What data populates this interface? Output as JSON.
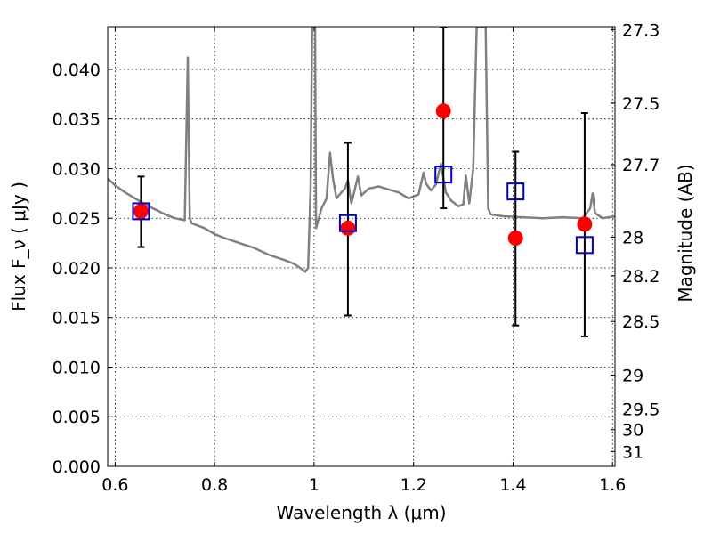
{
  "chart_data": {
    "type": "scatter",
    "xlabel": "Wavelength  λ (μm)",
    "ylabel": "Flux  F_ν  ( μJy )",
    "ylabel_right": "Magnitude (AB)",
    "xlim": [
      0.585,
      1.605
    ],
    "ylim": [
      0.0,
      0.0443
    ],
    "grid": true,
    "x_ticks": [
      {
        "value": 0.6,
        "label": "0.6"
      },
      {
        "value": 0.8,
        "label": "0.8"
      },
      {
        "value": 1.0,
        "label": "1"
      },
      {
        "value": 1.2,
        "label": "1.2"
      },
      {
        "value": 1.4,
        "label": "1.4"
      },
      {
        "value": 1.6,
        "label": "1.6"
      }
    ],
    "y_ticks": [
      {
        "value": 0.0,
        "label": "0.000"
      },
      {
        "value": 0.005,
        "label": "0.005"
      },
      {
        "value": 0.01,
        "label": "0.010"
      },
      {
        "value": 0.015,
        "label": "0.015"
      },
      {
        "value": 0.02,
        "label": "0.020"
      },
      {
        "value": 0.025,
        "label": "0.025"
      },
      {
        "value": 0.03,
        "label": "0.030"
      },
      {
        "value": 0.035,
        "label": "0.035"
      },
      {
        "value": 0.04,
        "label": "0.040"
      }
    ],
    "right_ticks": [
      {
        "label": "27.3",
        "flux": 0.044
      },
      {
        "label": "27.5",
        "flux": 0.0366
      },
      {
        "label": "27.7",
        "flux": 0.0304
      },
      {
        "label": "28",
        "flux": 0.0231
      },
      {
        "label": "28.2",
        "flux": 0.0192
      },
      {
        "label": "28.5",
        "flux": 0.0146
      },
      {
        "label": "29",
        "flux": 0.0092
      },
      {
        "label": "29.5",
        "flux": 0.0058
      },
      {
        "label": "30",
        "flux": 0.0037
      },
      {
        "label": "31",
        "flux": 0.0015
      }
    ],
    "series": [
      {
        "kind": "line",
        "color": "#808080",
        "points": [
          [
            0.585,
            0.029
          ],
          [
            0.6,
            0.0283
          ],
          [
            0.62,
            0.0276
          ],
          [
            0.64,
            0.027
          ],
          [
            0.66,
            0.0264
          ],
          [
            0.68,
            0.0259
          ],
          [
            0.7,
            0.0254
          ],
          [
            0.72,
            0.025
          ],
          [
            0.74,
            0.0248
          ],
          [
            0.742,
            0.03
          ],
          [
            0.746,
            0.0412
          ],
          [
            0.75,
            0.025
          ],
          [
            0.754,
            0.0245
          ],
          [
            0.78,
            0.024
          ],
          [
            0.8,
            0.0234
          ],
          [
            0.82,
            0.023
          ],
          [
            0.85,
            0.0225
          ],
          [
            0.88,
            0.022
          ],
          [
            0.91,
            0.0213
          ],
          [
            0.94,
            0.0208
          ],
          [
            0.96,
            0.0204
          ],
          [
            0.975,
            0.0199
          ],
          [
            0.982,
            0.0196
          ],
          [
            0.988,
            0.02
          ],
          [
            0.993,
            0.028
          ],
          [
            0.996,
            0.0443
          ],
          [
            1.002,
            0.0443
          ],
          [
            1.004,
            0.024
          ],
          [
            1.015,
            0.026
          ],
          [
            1.025,
            0.027
          ],
          [
            1.032,
            0.0316
          ],
          [
            1.038,
            0.029
          ],
          [
            1.045,
            0.027
          ],
          [
            1.055,
            0.0276
          ],
          [
            1.062,
            0.028
          ],
          [
            1.068,
            0.0288
          ],
          [
            1.075,
            0.0265
          ],
          [
            1.082,
            0.0279
          ],
          [
            1.088,
            0.0292
          ],
          [
            1.095,
            0.0273
          ],
          [
            1.11,
            0.028
          ],
          [
            1.13,
            0.0282
          ],
          [
            1.15,
            0.0279
          ],
          [
            1.17,
            0.0276
          ],
          [
            1.19,
            0.027
          ],
          [
            1.21,
            0.0274
          ],
          [
            1.22,
            0.0296
          ],
          [
            1.225,
            0.0285
          ],
          [
            1.235,
            0.0278
          ],
          [
            1.245,
            0.0284
          ],
          [
            1.255,
            0.0305
          ],
          [
            1.265,
            0.0276
          ],
          [
            1.275,
            0.0268
          ],
          [
            1.29,
            0.0262
          ],
          [
            1.3,
            0.0264
          ],
          [
            1.305,
            0.0293
          ],
          [
            1.312,
            0.0265
          ],
          [
            1.32,
            0.03
          ],
          [
            1.327,
            0.0443
          ],
          [
            1.345,
            0.0443
          ],
          [
            1.35,
            0.026
          ],
          [
            1.355,
            0.0254
          ],
          [
            1.38,
            0.0252
          ],
          [
            1.42,
            0.0251
          ],
          [
            1.46,
            0.025
          ],
          [
            1.5,
            0.0251
          ],
          [
            1.54,
            0.025
          ],
          [
            1.555,
            0.026
          ],
          [
            1.56,
            0.0275
          ],
          [
            1.565,
            0.0255
          ],
          [
            1.58,
            0.025
          ],
          [
            1.605,
            0.0252
          ]
        ]
      },
      {
        "kind": "errorbar",
        "color": "#000000",
        "points": [
          {
            "x": 0.652,
            "y": 0.0257,
            "low": 0.0221,
            "high": 0.0292
          },
          {
            "x": 1.068,
            "y": 0.024,
            "low": 0.0152,
            "high": 0.0326
          },
          {
            "x": 1.26,
            "y": 0.0358,
            "low": 0.026,
            "high": 0.0443
          },
          {
            "x": 1.405,
            "y": 0.023,
            "low": 0.0142,
            "high": 0.0317
          },
          {
            "x": 1.544,
            "y": 0.0244,
            "low": 0.0131,
            "high": 0.0356
          }
        ]
      },
      {
        "kind": "points",
        "marker": "circle",
        "color": "#ff0000",
        "points": [
          [
            0.652,
            0.0257
          ],
          [
            1.068,
            0.024
          ],
          [
            1.26,
            0.0358
          ],
          [
            1.405,
            0.023
          ],
          [
            1.544,
            0.0244
          ]
        ]
      },
      {
        "kind": "points",
        "marker": "open-square",
        "color": "#0000cc",
        "points": [
          [
            0.652,
            0.0257
          ],
          [
            1.068,
            0.0245
          ],
          [
            1.26,
            0.0294
          ],
          [
            1.405,
            0.0277
          ],
          [
            1.544,
            0.0223
          ]
        ]
      }
    ]
  }
}
